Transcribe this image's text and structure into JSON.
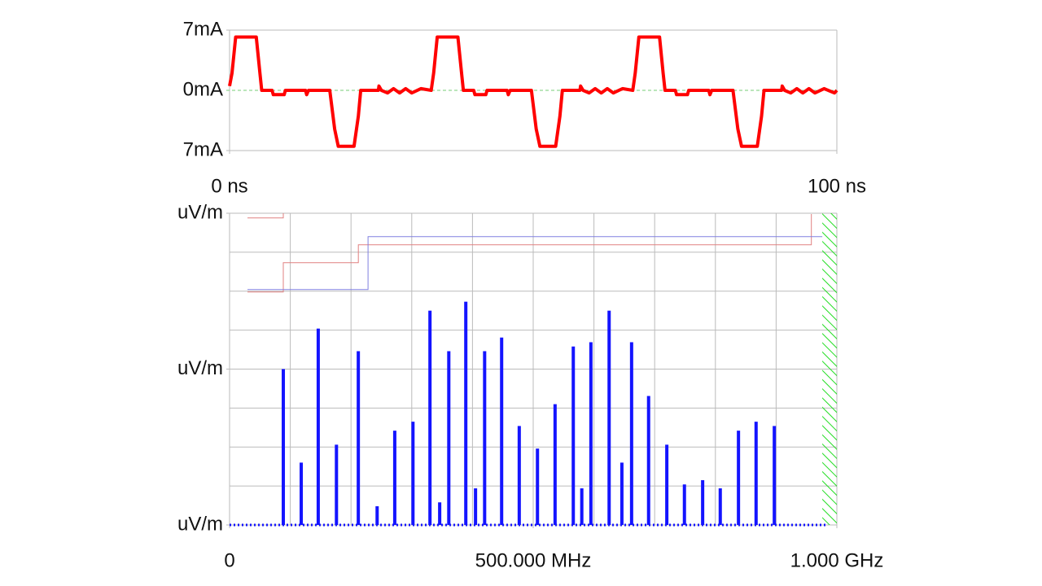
{
  "chart_data": [
    {
      "type": "line",
      "xlim": [
        0,
        100
      ],
      "xticks": [
        {
          "value": 0,
          "label": "0 ns"
        },
        {
          "value": 100,
          "label": "100 ns"
        }
      ],
      "ylim": [
        -7,
        7
      ],
      "yticks": [
        {
          "value": 7,
          "label": "7mA"
        },
        {
          "value": 0,
          "label": "0mA"
        },
        {
          "value": -7,
          "label": "7mA"
        }
      ],
      "series": [
        {
          "color": "#ff0000",
          "x": [
            0,
            0.4,
            1.0,
            4.4,
            5.0,
            5.3,
            7.0,
            7.2,
            9.0,
            9.2,
            12.5,
            12.7,
            13.0,
            16.5,
            17.3,
            17.9,
            20.5,
            21.2,
            21.6,
            24.5,
            24.6,
            25.0,
            26,
            27,
            28,
            29,
            30,
            31.5,
            33.2,
            33.6,
            34.2,
            37.6,
            38.2,
            38.5,
            40.2,
            40.4,
            42.2,
            42.4,
            45.7,
            45.9,
            46.2,
            49.7,
            50.5,
            51.1,
            53.7,
            54.4,
            54.8,
            57.7,
            57.8,
            58.2,
            59.2,
            60.2,
            61.2,
            62.2,
            63.2,
            64.7,
            66.4,
            66.8,
            67.4,
            70.8,
            71.4,
            71.7,
            73.4,
            73.6,
            75.4,
            75.6,
            78.9,
            79.1,
            79.4,
            82.9,
            83.7,
            84.3,
            86.9,
            87.6,
            88.0,
            90.9,
            91.0,
            91.4,
            92.4,
            93.4,
            94.4,
            95.4,
            96.4,
            97.9,
            99.6,
            100
          ],
          "values": [
            0.5,
            2,
            6.2,
            6.2,
            2,
            0,
            0,
            -0.5,
            -0.5,
            0,
            0,
            -0.5,
            0,
            0,
            -4.5,
            -6.5,
            -6.5,
            -3,
            0,
            0,
            0.5,
            0,
            -0.3,
            0.2,
            -0.3,
            0.2,
            -0.3,
            0.2,
            0,
            2,
            6.2,
            6.2,
            2,
            0,
            0,
            -0.5,
            -0.5,
            0,
            0,
            -0.5,
            0,
            0,
            -4.5,
            -6.5,
            -6.5,
            -3,
            0,
            0,
            0.5,
            0,
            -0.3,
            0.2,
            -0.3,
            0.2,
            -0.3,
            0.2,
            0,
            2,
            6.2,
            6.2,
            2,
            0,
            0,
            -0.5,
            -0.5,
            0,
            0,
            -0.5,
            0,
            0,
            -4.5,
            -6.5,
            -6.5,
            -3,
            0,
            0,
            0.5,
            0,
            -0.3,
            0.2,
            -0.3,
            0.2,
            -0.3,
            0.2,
            -0.3,
            0
          ]
        }
      ]
    },
    {
      "type": "bar",
      "xlim": [
        0,
        1000
      ],
      "xticks": [
        0,
        {
          "value": 500,
          "label": "500.000 MHz"
        },
        {
          "value": 1000,
          "label": "1.000 GHz"
        }
      ],
      "xgrid": [
        0,
        100,
        200,
        300,
        400,
        500,
        600,
        700,
        800,
        900,
        1000
      ],
      "ylim": [
        0,
        8
      ],
      "yticks": [
        {
          "value": 0,
          "label": "uV/m"
        },
        {
          "value": 4,
          "label": "uV/m"
        },
        {
          "value": 8,
          "label": "uV/m"
        }
      ],
      "ygrid": [
        0,
        1,
        2,
        3,
        4,
        5,
        6,
        7,
        8
      ],
      "color": "#1414ff",
      "x": [
        88.5,
        118,
        146,
        176,
        212,
        243,
        272,
        302,
        330,
        346,
        361,
        389,
        405,
        420,
        448,
        477,
        507,
        536,
        566,
        580,
        595,
        625,
        646,
        662,
        690,
        720,
        749,
        779,
        808,
        838,
        867,
        897
      ],
      "values": [
        4.0,
        1.6,
        5.04,
        2.06,
        4.46,
        0.48,
        2.42,
        2.65,
        5.5,
        0.58,
        4.46,
        5.73,
        0.94,
        4.46,
        4.81,
        2.54,
        1.96,
        3.1,
        4.58,
        0.94,
        4.69,
        5.5,
        1.6,
        4.69,
        3.31,
        2.06,
        1.04,
        1.15,
        0.94,
        2.42,
        2.65,
        2.54
      ],
      "limits": [
        {
          "color": "#e08080",
          "x": [
            29.5,
            88.5,
            88.5,
            212,
            212,
            958,
            958,
            958,
            29.5,
            88.5,
            88.5
          ],
          "values": [
            5.98,
            5.98,
            6.73,
            6.73,
            7.19,
            7.19,
            7.98,
            null,
            7.88,
            7.88,
            8
          ]
        },
        {
          "color": "#8080e0",
          "x": [
            29.5,
            228,
            228,
            976
          ],
          "values": [
            6.04,
            6.04,
            7.4,
            7.4
          ]
        }
      ],
      "hatch": [
        976,
        1000
      ],
      "hatch_color": "#22dd22"
    }
  ]
}
